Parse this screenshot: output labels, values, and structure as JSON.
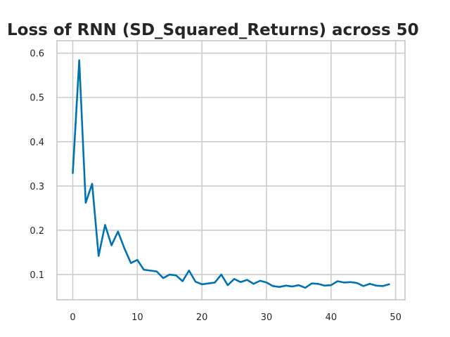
{
  "chart_data": {
    "type": "line",
    "title": "Loss of RNN (SD_Squared_Returns) across 50",
    "xlabel": "",
    "ylabel": "",
    "xlim": [
      -2.45,
      51.45
    ],
    "ylim": [
      0.043,
      0.628
    ],
    "xticks": [
      0,
      10,
      20,
      30,
      40,
      50
    ],
    "xtick_labels": [
      "0",
      "10",
      "20",
      "30",
      "40",
      "50"
    ],
    "yticks": [
      0.1,
      0.2,
      0.3,
      0.4,
      0.5,
      0.6
    ],
    "ytick_labels": [
      "0.1",
      "0.2",
      "0.3",
      "0.4",
      "0.5",
      "0.6"
    ],
    "grid": true,
    "series": [
      {
        "color": "#0072b2",
        "x": [
          0,
          1,
          2,
          3,
          4,
          5,
          6,
          7,
          8,
          9,
          10,
          11,
          12,
          13,
          14,
          15,
          16,
          17,
          18,
          19,
          20,
          21,
          22,
          23,
          24,
          25,
          26,
          27,
          28,
          29,
          30,
          31,
          32,
          33,
          34,
          35,
          36,
          37,
          38,
          39,
          40,
          41,
          42,
          43,
          44,
          45,
          46,
          47,
          48,
          49
        ],
        "values": [
          0.329,
          0.584,
          0.262,
          0.305,
          0.142,
          0.212,
          0.166,
          0.197,
          0.159,
          0.126,
          0.133,
          0.111,
          0.109,
          0.107,
          0.092,
          0.1,
          0.098,
          0.085,
          0.109,
          0.084,
          0.078,
          0.08,
          0.082,
          0.1,
          0.076,
          0.09,
          0.083,
          0.088,
          0.079,
          0.086,
          0.082,
          0.074,
          0.072,
          0.075,
          0.073,
          0.076,
          0.07,
          0.08,
          0.079,
          0.075,
          0.076,
          0.085,
          0.082,
          0.083,
          0.081,
          0.074,
          0.079,
          0.075,
          0.074,
          0.078
        ]
      }
    ]
  }
}
